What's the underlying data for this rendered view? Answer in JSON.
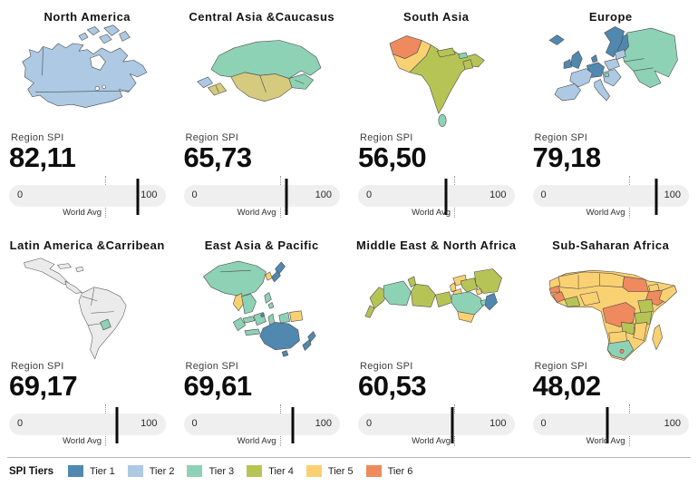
{
  "region_spi_label": "Region SPI",
  "gauge": {
    "min": "0",
    "max": "100",
    "world_avg_label": "World Avg",
    "world_avg_value": 61.5
  },
  "panels": [
    {
      "title": "North America",
      "value_label": "82,11",
      "value": 82.11
    },
    {
      "title": "Central Asia &Caucasus",
      "value_label": "65,73",
      "value": 65.73
    },
    {
      "title": "South Asia",
      "value_label": "56,50",
      "value": 56.5
    },
    {
      "title": "Europe",
      "value_label": "79,18",
      "value": 79.18
    },
    {
      "title": "Latin America &Carribean",
      "value_label": "69,17",
      "value": 69.17
    },
    {
      "title": "East Asia & Pacific",
      "value_label": "69,61",
      "value": 69.61
    },
    {
      "title": "Middle East & North Africa",
      "value_label": "60,53",
      "value": 60.53
    },
    {
      "title": "Sub-Saharan Africa",
      "value_label": "48,02",
      "value": 48.02
    }
  ],
  "legend": {
    "title": "SPI Tiers",
    "tiers": [
      {
        "label": "Tier 1",
        "color": "#5088af"
      },
      {
        "label": "Tier 2",
        "color": "#adc9e3"
      },
      {
        "label": "Tier 3",
        "color": "#8ed2b5"
      },
      {
        "label": "Tier 4",
        "color": "#b6c455"
      },
      {
        "label": "Tier 5",
        "color": "#fad172"
      },
      {
        "label": "Tier 6",
        "color": "#ef8a5f"
      }
    ]
  },
  "colors": {
    "no_data": "#ebebeb",
    "tier4_light": "#d6ca7e",
    "gauge_bar": "#efefef",
    "marker": "#0b0b0b"
  },
  "chart_data": {
    "type": "table",
    "title": "Regional SPI — small-multiple choropleth maps with 0-100 bullet gauges",
    "categories": [
      "North America",
      "Central Asia &Caucasus",
      "South Asia",
      "Europe",
      "Latin America &Carribean",
      "East Asia & Pacific",
      "Middle East & North Africa",
      "Sub-Saharan Africa"
    ],
    "values": [
      82.11,
      65.73,
      56.5,
      79.18,
      69.17,
      69.61,
      60.53,
      48.02
    ],
    "value_labels": [
      "82,11",
      "65,73",
      "56,50",
      "79,18",
      "69,17",
      "69,61",
      "60,53",
      "48,02"
    ],
    "gauge_range": [
      0,
      100
    ],
    "world_avg_marker": 61.5,
    "legend_entries": [
      "Tier 1",
      "Tier 2",
      "Tier 3",
      "Tier 4",
      "Tier 5",
      "Tier 6"
    ],
    "legend_position": "bottom",
    "layout": "4x2 grid of region panels"
  }
}
